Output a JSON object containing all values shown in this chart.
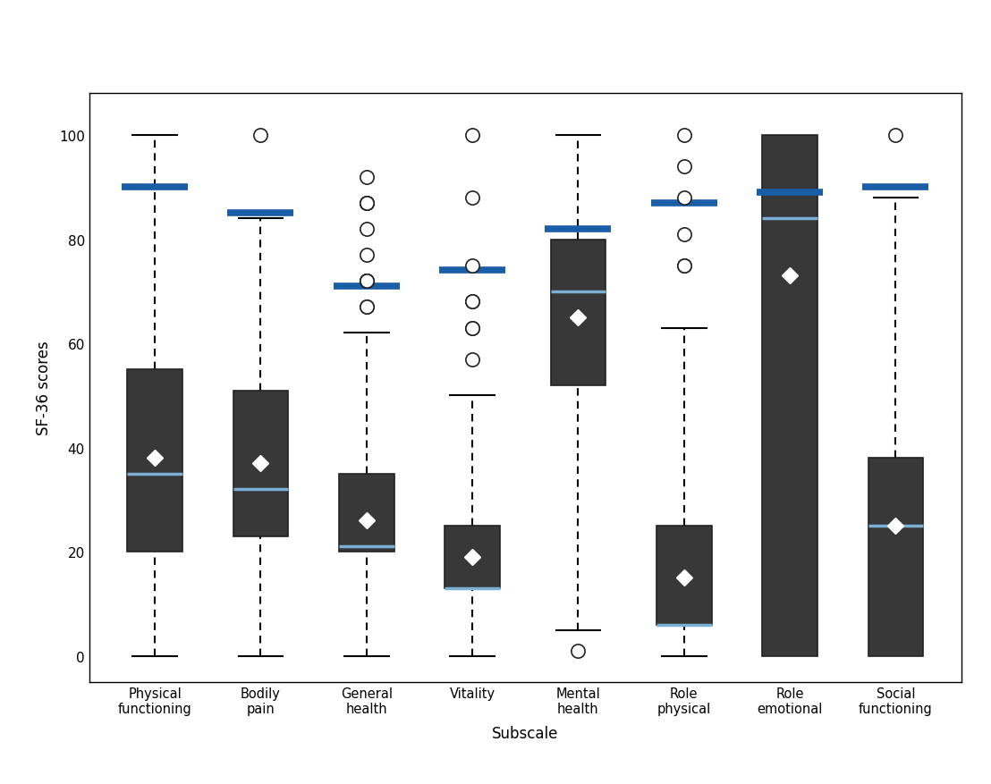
{
  "categories": [
    "Physical\nfunctioning",
    "Bodily\npain",
    "General\nhealth",
    "Vitality",
    "Mental\nhealth",
    "Role\nphysical",
    "Role\nemotional",
    "Social\nfunctioning"
  ],
  "box_data": {
    "Physical\nfunctioning": {
      "q1": 20,
      "median": 35,
      "q3": 55,
      "whisker_low": 0,
      "whisker_high": 100,
      "mean": 38,
      "outliers": []
    },
    "Bodily\npain": {
      "q1": 23,
      "median": 32,
      "q3": 51,
      "whisker_low": 0,
      "whisker_high": 84,
      "mean": 37,
      "outliers": [
        100
      ]
    },
    "General\nhealth": {
      "q1": 20,
      "median": 21,
      "q3": 35,
      "whisker_low": 0,
      "whisker_high": 62,
      "mean": 26,
      "outliers": [
        67,
        67,
        72,
        72,
        72,
        77,
        82,
        87,
        87,
        87,
        92
      ]
    },
    "Vitality": {
      "q1": 13,
      "median": 13,
      "q3": 25,
      "whisker_low": 0,
      "whisker_high": 50,
      "mean": 19,
      "outliers": [
        57,
        63,
        63,
        68,
        68,
        75,
        88,
        100
      ]
    },
    "Mental\nhealth": {
      "q1": 52,
      "median": 70,
      "q3": 80,
      "whisker_low": 5,
      "whisker_high": 100,
      "mean": 65,
      "outliers": [
        1
      ]
    },
    "Role\nphysical": {
      "q1": 6,
      "median": 6,
      "q3": 25,
      "whisker_low": 0,
      "whisker_high": 63,
      "mean": 15,
      "outliers": [
        75,
        75,
        81,
        88,
        94,
        100
      ]
    },
    "Role\nemotional": {
      "q1": 0,
      "median": 84,
      "q3": 100,
      "whisker_low": 0,
      "whisker_high": 100,
      "mean": 73,
      "outliers": []
    },
    "Social\nfunctioning": {
      "q1": 0,
      "median": 25,
      "q3": 38,
      "whisker_low": 0,
      "whisker_high": 88,
      "mean": 25,
      "outliers": [
        100
      ]
    }
  },
  "healthy_controls_means": {
    "Physical\nfunctioning": 90,
    "Bodily\npain": 85,
    "General\nhealth": 71,
    "Vitality": 74,
    "Mental\nhealth": 82,
    "Role\nphysical": 87,
    "Role\nemotional": 89,
    "Social\nfunctioning": 90
  },
  "box_color": "#383838",
  "box_edgecolor": "#222222",
  "median_color": "#7bafd4",
  "mean_marker_color": "white",
  "whisker_color": "black",
  "cap_color": "black",
  "healthy_color": "#1a5ea8",
  "outlier_edgecolor": "#222222",
  "outlier_facecolor": "white",
  "background_color": "white",
  "ylabel": "SF-36 scores",
  "xlabel": "Subscale",
  "ylim": [
    -5,
    108
  ],
  "yticks": [
    0,
    20,
    40,
    60,
    80,
    100
  ]
}
